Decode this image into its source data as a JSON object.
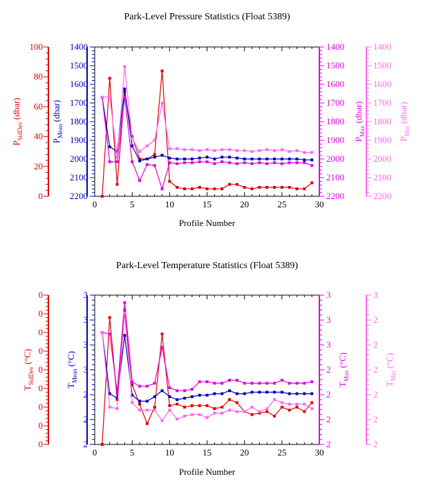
{
  "footer_text": "",
  "chart_data": [
    {
      "type": "line",
      "title": "Park-Level Pressure Statistics (Float 5389)",
      "xlabel": "Profile Number",
      "xlim": [
        0,
        30
      ],
      "xticks": [
        "0",
        "5",
        "10",
        "15",
        "20",
        "25",
        "30"
      ],
      "axes": [
        {
          "label_main": "P",
          "label_sub": "StdDev",
          "label_unit": " (dbar)",
          "color": "#dd0000",
          "ticks": [
            "100",
            "80",
            "60",
            "40",
            "20",
            "0"
          ]
        },
        {
          "label_main": "P",
          "label_sub": "Mean",
          "label_unit": " (dbar)",
          "color": "#0000bb",
          "ticks": [
            "1400",
            "1500",
            "1600",
            "1700",
            "1800",
            "1900",
            "2000",
            "2100",
            "2200"
          ]
        },
        {
          "label_main": "P",
          "label_sub": "Max",
          "label_unit": " (dbar)",
          "color": "#dd00dd",
          "ticks": [
            "1400",
            "1500",
            "1600",
            "1700",
            "1800",
            "1900",
            "2000",
            "2100",
            "2200"
          ]
        },
        {
          "label_main": "P",
          "label_sub": "Min",
          "label_unit": " (dbar)",
          "color": "#ff66ee",
          "ticks": [
            "1400",
            "1500",
            "1600",
            "1700",
            "1800",
            "1900",
            "2000",
            "2100",
            "2200"
          ]
        }
      ],
      "x": [
        1,
        2,
        3,
        4,
        5,
        6,
        7,
        8,
        9,
        10,
        11,
        12,
        13,
        14,
        15,
        16,
        17,
        18,
        19,
        20,
        21,
        22,
        23,
        24,
        25,
        26,
        27,
        28,
        29
      ],
      "series": [
        {
          "key": "stddev",
          "color": "#dd0000",
          "ylim": [
            0,
            100
          ],
          "values": [
            0,
            79,
            8,
            70,
            40,
            25,
            25,
            28,
            84,
            10,
            6,
            5,
            5,
            6,
            5,
            5,
            5,
            8,
            8,
            6,
            5,
            6,
            6,
            6,
            6,
            6,
            5,
            5,
            9
          ]
        },
        {
          "key": "mean",
          "color": "#0000bb",
          "ylim": [
            2200,
            1400
          ],
          "values": [
            1670,
            1935,
            1960,
            1625,
            1930,
            2010,
            2000,
            1990,
            1980,
            1995,
            2000,
            2000,
            2000,
            1995,
            1990,
            2000,
            1990,
            1990,
            1995,
            2000,
            2000,
            2000,
            2000,
            2000,
            2000,
            2000,
            2000,
            2005,
            2005
          ]
        },
        {
          "key": "max",
          "color": "#dd00dd",
          "ylim": [
            2200,
            1400
          ],
          "values": [
            1670,
            2015,
            2015,
            1670,
            2015,
            2115,
            2030,
            2035,
            2160,
            2020,
            2025,
            2020,
            2020,
            2015,
            2015,
            2025,
            2015,
            2020,
            2025,
            2020,
            2025,
            2020,
            2025,
            2020,
            2025,
            2020,
            2020,
            2020,
            2035
          ]
        },
        {
          "key": "min",
          "color": "#ff66ee",
          "ylim": [
            2200,
            1400
          ],
          "values": [
            1670,
            1665,
            1990,
            1505,
            1890,
            1960,
            1930,
            1900,
            1700,
            1945,
            1945,
            1950,
            1950,
            1955,
            1950,
            1955,
            1950,
            1950,
            1955,
            1955,
            1960,
            1955,
            1950,
            1955,
            1950,
            1960,
            1955,
            1965,
            1965
          ]
        }
      ]
    },
    {
      "type": "line",
      "title": "Park-Level Temperature Statistics (Float 5389)",
      "xlabel": "Profile Number",
      "xlim": [
        0,
        30
      ],
      "xticks": [
        "0",
        "5",
        "10",
        "15",
        "20",
        "25",
        "30"
      ],
      "axes": [
        {
          "label_main": "T",
          "label_sub": "StdDev",
          "label_unit": " (°C)",
          "color": "#dd0000",
          "ticks": [
            "0",
            "0",
            "0",
            "0",
            "0",
            "0",
            "0",
            "0",
            "0"
          ]
        },
        {
          "label_main": "T",
          "label_sub": "Mean",
          "label_unit": " (°C)",
          "color": "#0000bb",
          "ticks": [
            "3",
            "3",
            "3",
            "3",
            "2",
            "2",
            "2"
          ]
        },
        {
          "label_main": "T",
          "label_sub": "Max",
          "label_unit": " (°C)",
          "color": "#dd00dd",
          "ticks": [
            "3",
            "3",
            "3",
            "2",
            "2",
            "2",
            "2"
          ]
        },
        {
          "label_main": "T",
          "label_sub": "Min",
          "label_unit": " (°C)",
          "color": "#ff66ee",
          "ticks": [
            "3",
            "2",
            "2",
            "2",
            "2",
            "2",
            "2"
          ]
        }
      ],
      "x": [
        1,
        2,
        3,
        4,
        5,
        6,
        7,
        8,
        9,
        10,
        11,
        12,
        13,
        14,
        15,
        16,
        17,
        18,
        19,
        20,
        21,
        22,
        23,
        24,
        25,
        26,
        27,
        28,
        29
      ],
      "series": [
        {
          "key": "stddev",
          "color": "#dd0000",
          "ylim": [
            0,
            100
          ],
          "values": [
            0,
            85,
            30,
            90,
            40,
            27,
            14,
            25,
            74,
            26,
            27,
            25,
            26,
            26,
            26,
            24,
            25,
            30,
            28,
            22,
            20,
            21,
            22,
            19,
            25,
            23,
            25,
            22,
            28
          ]
        },
        {
          "key": "mean",
          "color": "#0000bb",
          "ylim": [
            0,
            100
          ],
          "values": [
            75,
            34,
            31,
            73,
            33,
            29,
            29,
            32,
            36,
            32,
            30,
            31,
            32,
            33,
            33,
            34,
            34,
            36,
            34,
            34,
            35,
            35,
            35,
            35,
            35,
            34,
            34,
            34,
            34
          ]
        },
        {
          "key": "max",
          "color": "#dd00dd",
          "ylim": [
            0,
            100
          ],
          "values": [
            75,
            74,
            35,
            95,
            42,
            39,
            39,
            41,
            65,
            38,
            36,
            36,
            37,
            42,
            42,
            41,
            41,
            43,
            43,
            41,
            41,
            41,
            41,
            41,
            43,
            41,
            41,
            41,
            42
          ]
        },
        {
          "key": "min",
          "color": "#ff66ee",
          "ylim": [
            0,
            100
          ],
          "values": [
            75,
            25,
            24,
            88,
            28,
            23,
            23,
            23,
            16,
            23,
            17,
            19,
            20,
            20,
            18,
            21,
            21,
            23,
            22,
            22,
            25,
            22,
            24,
            30,
            28,
            27,
            27,
            27,
            24
          ]
        }
      ]
    }
  ]
}
